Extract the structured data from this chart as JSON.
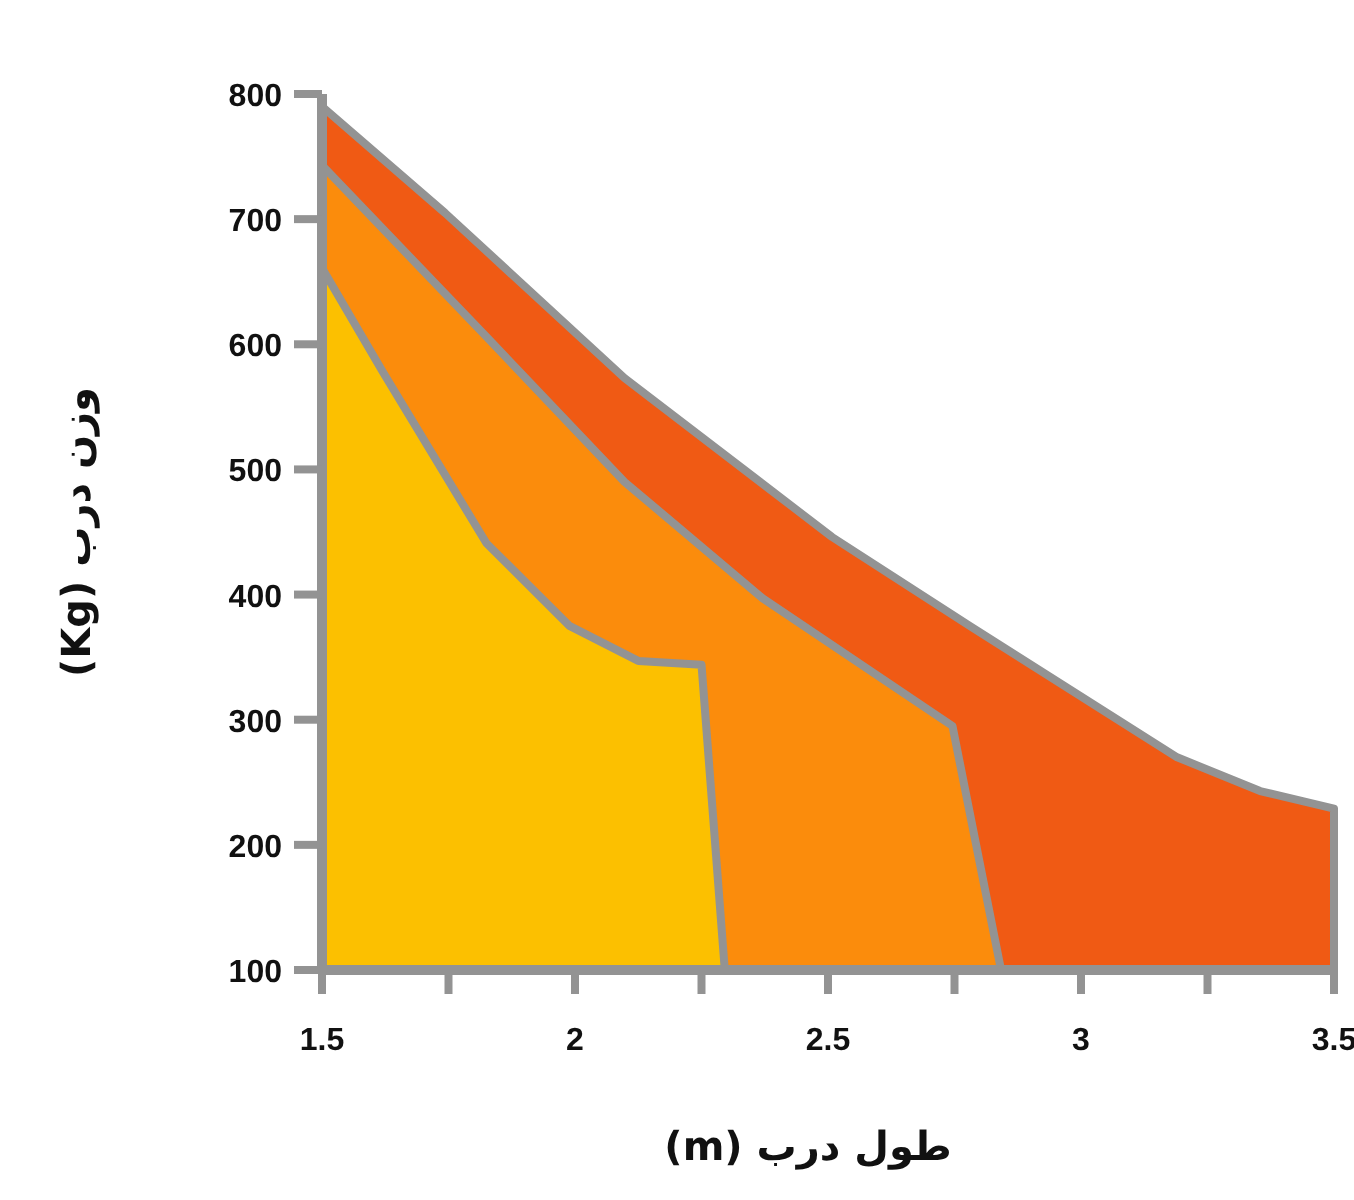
{
  "chart_data": {
    "type": "area",
    "xlabel": "طول درب (m)",
    "ylabel": "وزن درب (Kg)",
    "xlim": [
      1.5,
      3.5
    ],
    "ylim": [
      100,
      800
    ],
    "xticks": [
      1.5,
      {
        "value": 1.75,
        "label": null
      },
      2,
      {
        "value": 2.25,
        "label": null
      },
      2.5,
      {
        "value": 2.75,
        "label": null
      },
      3,
      {
        "value": 3.25,
        "label": null
      },
      3.5
    ],
    "yticks": [
      100,
      200,
      300,
      400,
      500,
      600,
      700,
      800
    ],
    "series": [
      {
        "color": "#f05a14",
        "x": [
          1.5,
          1.743,
          2.098,
          2.508,
          2.78,
          3.19,
          3.354,
          3.5,
          3.5
        ],
        "values": [
          790,
          705,
          573,
          446,
          375,
          270,
          243,
          229,
          100
        ]
      },
      {
        "color": "#fb8c0c",
        "x": [
          1.5,
          1.825,
          2.098,
          2.371,
          2.746,
          2.842
        ],
        "values": [
          743,
          606,
          490,
          397,
          295,
          100
        ]
      },
      {
        "color": "#fcc000",
        "x": [
          1.5,
          1.62,
          1.825,
          1.989,
          2.125,
          2.25,
          2.296
        ],
        "values": [
          661,
          578,
          441,
          375,
          347,
          344,
          100
        ]
      }
    ],
    "grid": false
  }
}
